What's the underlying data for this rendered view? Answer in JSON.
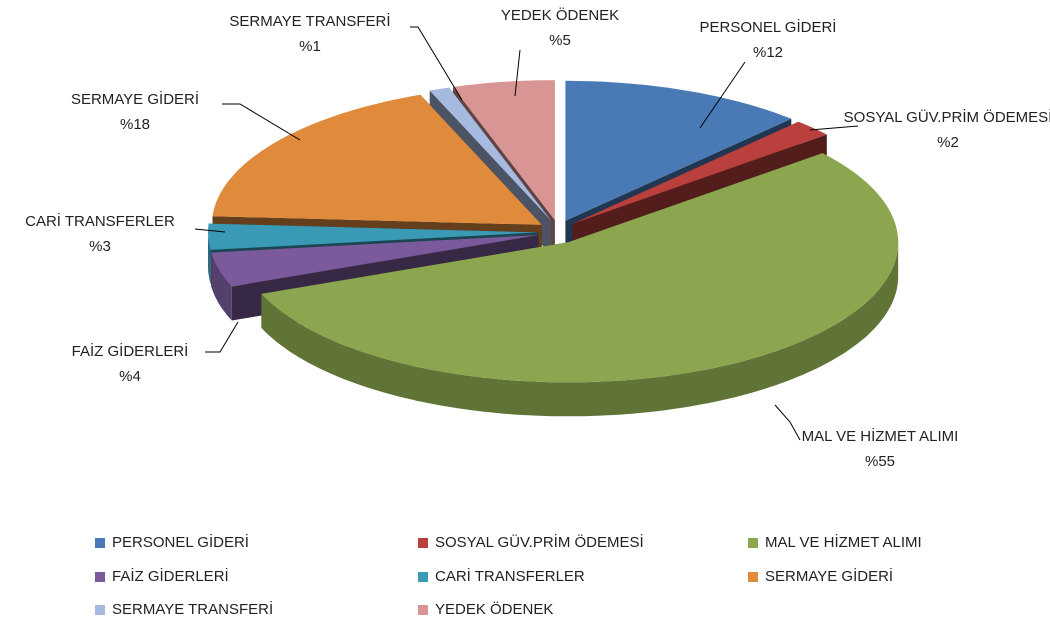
{
  "chart_data": {
    "type": "pie3d",
    "categories": [
      "PERSONEL GİDERİ",
      "SOSYAL GÜV.PRİM ÖDEMESİ",
      "MAL VE HİZMET ALIMI",
      "FAİZ GİDERLERİ",
      "CARİ TRANSFERLER",
      "SERMAYE GİDERİ",
      "SERMAYE TRANSFERİ",
      "YEDEK ÖDENEK"
    ],
    "values": [
      12,
      2,
      55,
      4,
      3,
      18,
      1,
      5
    ],
    "value_labels": [
      "%12",
      "%2",
      "%55",
      "%4",
      "%3",
      "%18",
      "%1",
      "%5"
    ],
    "colors": [
      "#4a7ab5",
      "#b9403c",
      "#8ba64e",
      "#7a5a9a",
      "#3a9ab6",
      "#e08a3c",
      "#a6b9de",
      "#d99594"
    ],
    "legend": "bottom"
  }
}
